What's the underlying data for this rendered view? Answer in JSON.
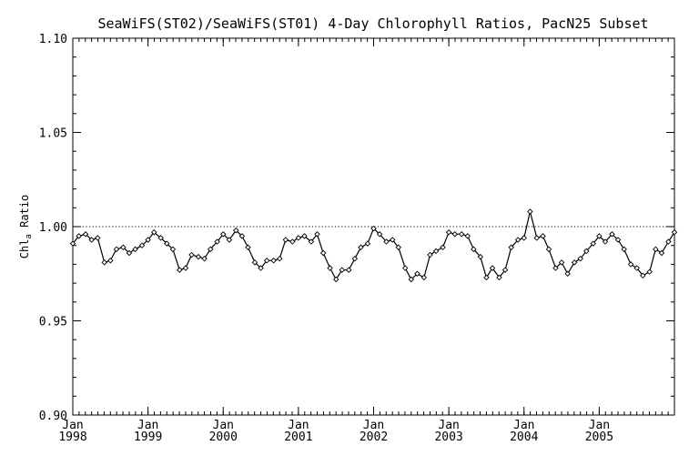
{
  "chart_data": {
    "type": "line",
    "title": "SeaWiFS(ST02)/SeaWiFS(ST01) 4-Day Chlorophyll Ratios, PacN25 Subset",
    "ylabel_main": "Chl",
    "ylabel_sub": "a",
    "ylabel_tail": " Ratio",
    "xlabel": "",
    "ylim": [
      0.9,
      1.1
    ],
    "xlim": [
      1998.0,
      2006.0
    ],
    "y_ticks": [
      {
        "value": 0.9,
        "label": "0.90"
      },
      {
        "value": 0.95,
        "label": "0.95"
      },
      {
        "value": 1.0,
        "label": "1.00"
      },
      {
        "value": 1.05,
        "label": "1.05"
      },
      {
        "value": 1.1,
        "label": "1.10"
      }
    ],
    "x_ticks": [
      {
        "value": 1998.0,
        "month": "Jan",
        "year": "1998"
      },
      {
        "value": 1999.0,
        "month": "Jan",
        "year": "1999"
      },
      {
        "value": 2000.0,
        "month": "Jan",
        "year": "2000"
      },
      {
        "value": 2001.0,
        "month": "Jan",
        "year": "2001"
      },
      {
        "value": 2002.0,
        "month": "Jan",
        "year": "2002"
      },
      {
        "value": 2003.0,
        "month": "Jan",
        "year": "2003"
      },
      {
        "value": 2004.0,
        "month": "Jan",
        "year": "2004"
      },
      {
        "value": 2005.0,
        "month": "Jan",
        "year": "2005"
      }
    ],
    "reference_line": 1.0,
    "grid": false,
    "series": [
      {
        "x": [
          1998.0,
          1998.08,
          1998.17,
          1998.25,
          1998.33,
          1998.42,
          1998.5,
          1998.58,
          1998.67,
          1998.75,
          1998.83,
          1998.92,
          1999.0,
          1999.08,
          1999.17,
          1999.25,
          1999.33,
          1999.42,
          1999.5,
          1999.58,
          1999.67,
          1999.75,
          1999.83,
          1999.92,
          2000.0,
          2000.08,
          2000.17,
          2000.25,
          2000.33,
          2000.42,
          2000.5,
          2000.58,
          2000.67,
          2000.75,
          2000.83,
          2000.92,
          2001.0,
          2001.08,
          2001.17,
          2001.25,
          2001.33,
          2001.42,
          2001.5,
          2001.58,
          2001.67,
          2001.75,
          2001.83,
          2001.92,
          2002.0,
          2002.08,
          2002.17,
          2002.25,
          2002.33,
          2002.42,
          2002.5,
          2002.58,
          2002.67,
          2002.75,
          2002.83,
          2002.92,
          2003.0,
          2003.08,
          2003.17,
          2003.25,
          2003.33,
          2003.42,
          2003.5,
          2003.58,
          2003.67,
          2003.75,
          2003.83,
          2003.92,
          2004.0,
          2004.08,
          2004.17,
          2004.25,
          2004.33,
          2004.42,
          2004.5,
          2004.58,
          2004.67,
          2004.75,
          2004.83,
          2004.92,
          2005.0,
          2005.08,
          2005.17,
          2005.25,
          2005.33,
          2005.42,
          2005.5,
          2005.58,
          2005.67,
          2005.75,
          2005.83,
          2005.92,
          2006.0
        ],
        "values": [
          0.991,
          0.995,
          0.996,
          0.993,
          0.994,
          0.981,
          0.982,
          0.988,
          0.989,
          0.986,
          0.988,
          0.99,
          0.993,
          0.997,
          0.994,
          0.991,
          0.988,
          0.977,
          0.978,
          0.985,
          0.984,
          0.983,
          0.988,
          0.992,
          0.996,
          0.993,
          0.998,
          0.995,
          0.989,
          0.981,
          0.978,
          0.982,
          0.982,
          0.983,
          0.993,
          0.992,
          0.994,
          0.995,
          0.992,
          0.996,
          0.986,
          0.978,
          0.972,
          0.977,
          0.977,
          0.983,
          0.989,
          0.991,
          0.999,
          0.996,
          0.992,
          0.993,
          0.989,
          0.978,
          0.972,
          0.975,
          0.973,
          0.985,
          0.987,
          0.989,
          0.997,
          0.996,
          0.996,
          0.995,
          0.988,
          0.984,
          0.973,
          0.978,
          0.973,
          0.977,
          0.989,
          0.993,
          0.994,
          1.008,
          0.994,
          0.995,
          0.988,
          0.978,
          0.981,
          0.975,
          0.981,
          0.983,
          0.987,
          0.991,
          0.995,
          0.992,
          0.996,
          0.993,
          0.988,
          0.98,
          0.978,
          0.974,
          0.976,
          0.988,
          0.986,
          0.992,
          0.997
        ]
      }
    ]
  }
}
